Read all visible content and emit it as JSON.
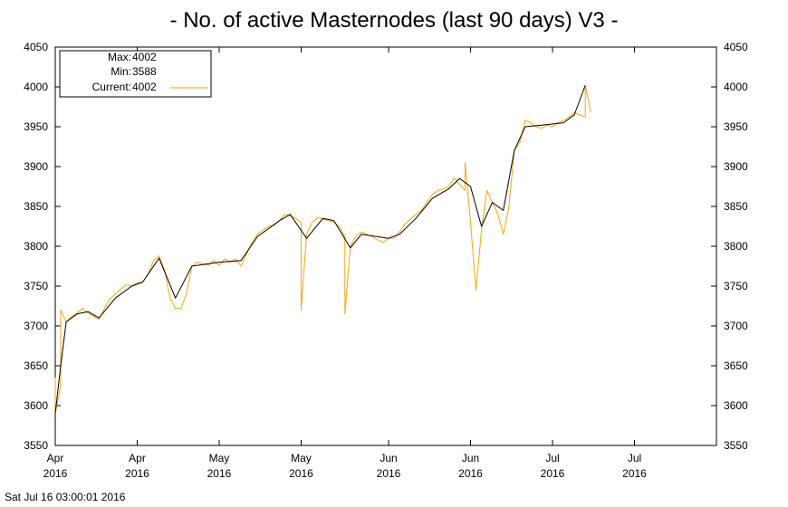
{
  "chart_data": {
    "type": "line",
    "title": "- No. of active Masternodes (last 90 days) V3 -",
    "ylim": [
      3550,
      4050
    ],
    "y_ticks": [
      3550,
      3600,
      3650,
      3700,
      3750,
      3800,
      3850,
      3900,
      3950,
      4000,
      4050
    ],
    "x_range": [
      "2016-04-01",
      "2016-07-31"
    ],
    "x_ticks": [
      {
        "date": "2016-04-01",
        "top": "Apr",
        "bottom": "2016"
      },
      {
        "date": "2016-04-16",
        "top": "Apr",
        "bottom": "2016"
      },
      {
        "date": "2016-05-01",
        "top": "May",
        "bottom": "2016"
      },
      {
        "date": "2016-05-16",
        "top": "May",
        "bottom": "2016"
      },
      {
        "date": "2016-06-01",
        "top": "Jun",
        "bottom": "2016"
      },
      {
        "date": "2016-06-16",
        "top": "Jun",
        "bottom": "2016"
      },
      {
        "date": "2016-07-01",
        "top": "Jul",
        "bottom": "2016"
      },
      {
        "date": "2016-07-16",
        "top": "Jul",
        "bottom": "2016"
      }
    ],
    "grid": false,
    "legend_placement": "top-left",
    "legend": [
      {
        "label": "Max:",
        "value": "4002"
      },
      {
        "label": "Min:",
        "value": "3588"
      },
      {
        "label": "Current:",
        "value": "4002"
      }
    ],
    "colors": {
      "raw": "#ffa500",
      "trend": "#000000"
    },
    "series": [
      {
        "name": "Current",
        "points": [
          [
            "2016-04-01",
            3600
          ],
          [
            "2016-04-01",
            3635
          ],
          [
            "2016-04-01",
            3590
          ],
          [
            "2016-04-02",
            3625
          ],
          [
            "2016-04-02",
            3720
          ],
          [
            "2016-04-03",
            3705
          ],
          [
            "2016-04-04",
            3712
          ],
          [
            "2016-04-05",
            3716
          ],
          [
            "2016-04-06",
            3722
          ],
          [
            "2016-04-07",
            3716
          ],
          [
            "2016-04-08",
            3712
          ],
          [
            "2016-04-09",
            3708
          ],
          [
            "2016-04-10",
            3722
          ],
          [
            "2016-04-11",
            3734
          ],
          [
            "2016-04-12",
            3740
          ],
          [
            "2016-04-13",
            3746
          ],
          [
            "2016-04-14",
            3752
          ],
          [
            "2016-04-15",
            3750
          ],
          [
            "2016-04-16",
            3754
          ],
          [
            "2016-04-17",
            3755
          ],
          [
            "2016-04-18",
            3765
          ],
          [
            "2016-04-19",
            3782
          ],
          [
            "2016-04-20",
            3788
          ],
          [
            "2016-04-21",
            3770
          ],
          [
            "2016-04-22",
            3735
          ],
          [
            "2016-04-23",
            3722
          ],
          [
            "2016-04-24",
            3722
          ],
          [
            "2016-04-25",
            3740
          ],
          [
            "2016-04-26",
            3775
          ],
          [
            "2016-04-27",
            3780
          ],
          [
            "2016-04-28",
            3778
          ],
          [
            "2016-04-29",
            3776
          ],
          [
            "2016-04-30",
            3782
          ],
          [
            "2016-05-01",
            3776
          ],
          [
            "2016-05-02",
            3784
          ],
          [
            "2016-05-03",
            3780
          ],
          [
            "2016-05-04",
            3784
          ],
          [
            "2016-05-05",
            3775
          ],
          [
            "2016-05-06",
            3790
          ],
          [
            "2016-05-07",
            3805
          ],
          [
            "2016-05-08",
            3815
          ],
          [
            "2016-05-09",
            3820
          ],
          [
            "2016-05-10",
            3825
          ],
          [
            "2016-05-11",
            3826
          ],
          [
            "2016-05-12",
            3832
          ],
          [
            "2016-05-13",
            3840
          ],
          [
            "2016-05-14",
            3838
          ],
          [
            "2016-05-15",
            3835
          ],
          [
            "2016-05-16",
            3830
          ],
          [
            "2016-05-16",
            3720
          ],
          [
            "2016-05-17",
            3815
          ],
          [
            "2016-05-18",
            3830
          ],
          [
            "2016-05-19",
            3836
          ],
          [
            "2016-05-20",
            3834
          ],
          [
            "2016-05-21",
            3832
          ],
          [
            "2016-05-22",
            3830
          ],
          [
            "2016-05-23",
            3825
          ],
          [
            "2016-05-24",
            3812
          ],
          [
            "2016-05-24",
            3715
          ],
          [
            "2016-05-25",
            3800
          ],
          [
            "2016-05-26",
            3812
          ],
          [
            "2016-05-27",
            3818
          ],
          [
            "2016-05-28",
            3815
          ],
          [
            "2016-05-29",
            3812
          ],
          [
            "2016-05-30",
            3808
          ],
          [
            "2016-05-31",
            3805
          ],
          [
            "2016-06-01",
            3810
          ],
          [
            "2016-06-02",
            3810
          ],
          [
            "2016-06-03",
            3818
          ],
          [
            "2016-06-04",
            3828
          ],
          [
            "2016-06-05",
            3834
          ],
          [
            "2016-06-06",
            3840
          ],
          [
            "2016-06-07",
            3845
          ],
          [
            "2016-06-08",
            3855
          ],
          [
            "2016-06-09",
            3865
          ],
          [
            "2016-06-10",
            3870
          ],
          [
            "2016-06-11",
            3872
          ],
          [
            "2016-06-12",
            3875
          ],
          [
            "2016-06-13",
            3885
          ],
          [
            "2016-06-14",
            3878
          ],
          [
            "2016-06-15",
            3870
          ],
          [
            "2016-06-15",
            3905
          ],
          [
            "2016-06-16",
            3830
          ],
          [
            "2016-06-17",
            3745
          ],
          [
            "2016-06-18",
            3820
          ],
          [
            "2016-06-19",
            3870
          ],
          [
            "2016-06-20",
            3855
          ],
          [
            "2016-06-21",
            3840
          ],
          [
            "2016-06-22",
            3815
          ],
          [
            "2016-06-23",
            3848
          ],
          [
            "2016-06-24",
            3920
          ],
          [
            "2016-06-25",
            3930
          ],
          [
            "2016-06-26",
            3958
          ],
          [
            "2016-06-27",
            3955
          ],
          [
            "2016-06-28",
            3950
          ],
          [
            "2016-06-29",
            3948
          ],
          [
            "2016-06-30",
            3952
          ],
          [
            "2016-07-01",
            3950
          ],
          [
            "2016-07-02",
            3955
          ],
          [
            "2016-07-03",
            3958
          ],
          [
            "2016-07-04",
            3962
          ],
          [
            "2016-07-05",
            3968
          ],
          [
            "2016-07-06",
            3965
          ],
          [
            "2016-07-07",
            3962
          ],
          [
            "2016-07-07",
            4002
          ],
          [
            "2016-07-08",
            3968
          ]
        ]
      },
      {
        "name": "",
        "points": [
          [
            "2016-04-01",
            3590
          ],
          [
            "2016-04-02",
            3650
          ],
          [
            "2016-04-03",
            3705
          ],
          [
            "2016-04-05",
            3715
          ],
          [
            "2016-04-07",
            3718
          ],
          [
            "2016-04-09",
            3710
          ],
          [
            "2016-04-12",
            3735
          ],
          [
            "2016-04-15",
            3750
          ],
          [
            "2016-04-17",
            3755
          ],
          [
            "2016-04-20",
            3785
          ],
          [
            "2016-04-23",
            3735
          ],
          [
            "2016-04-26",
            3775
          ],
          [
            "2016-05-01",
            3780
          ],
          [
            "2016-05-05",
            3782
          ],
          [
            "2016-05-08",
            3812
          ],
          [
            "2016-05-12",
            3832
          ],
          [
            "2016-05-14",
            3840
          ],
          [
            "2016-05-17",
            3810
          ],
          [
            "2016-05-20",
            3835
          ],
          [
            "2016-05-22",
            3832
          ],
          [
            "2016-05-25",
            3798
          ],
          [
            "2016-05-27",
            3815
          ],
          [
            "2016-06-01",
            3810
          ],
          [
            "2016-06-03",
            3815
          ],
          [
            "2016-06-06",
            3835
          ],
          [
            "2016-06-09",
            3860
          ],
          [
            "2016-06-12",
            3872
          ],
          [
            "2016-06-14",
            3885
          ],
          [
            "2016-06-16",
            3875
          ],
          [
            "2016-06-18",
            3825
          ],
          [
            "2016-06-20",
            3855
          ],
          [
            "2016-06-22",
            3845
          ],
          [
            "2016-06-24",
            3920
          ],
          [
            "2016-06-26",
            3950
          ],
          [
            "2016-06-29",
            3952
          ],
          [
            "2016-07-03",
            3955
          ],
          [
            "2016-07-05",
            3965
          ],
          [
            "2016-07-07",
            4002
          ]
        ]
      }
    ]
  },
  "footer": {
    "timestamp": "Sat Jul 16 03:00:01 2016"
  }
}
